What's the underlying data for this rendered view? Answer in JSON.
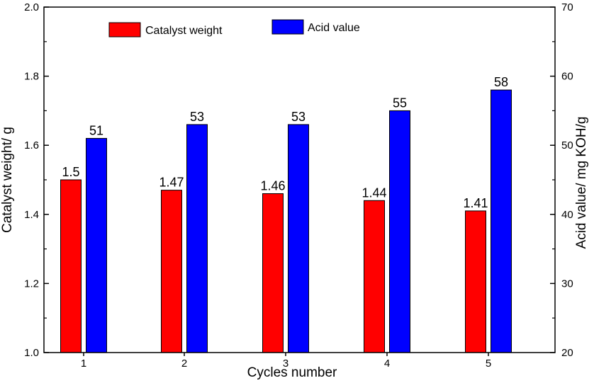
{
  "chart_data": {
    "type": "bar",
    "title": "",
    "xlabel": "Cycles number",
    "ylabel_left": "Catalyst weight/ g",
    "ylabel_right": "Acid value/ mg KOH/g",
    "categories": [
      "1",
      "2",
      "3",
      "4",
      "5"
    ],
    "ylim_left": [
      1.0,
      2.0
    ],
    "yticks_left": [
      "1.0",
      "1.2",
      "1.4",
      "1.6",
      "1.8",
      "2.0"
    ],
    "ylim_right": [
      20,
      70
    ],
    "yticks_right": [
      "20",
      "30",
      "40",
      "50",
      "60",
      "70"
    ],
    "grid": false,
    "legend_position": "top",
    "series": [
      {
        "name": "Catalyst weight",
        "axis": "left",
        "color": "#ff0000",
        "values": [
          1.5,
          1.47,
          1.46,
          1.44,
          1.41
        ],
        "labels": [
          "1.5",
          "1.47",
          "1.46",
          "1.44",
          "1.41"
        ]
      },
      {
        "name": "Acid value",
        "axis": "right",
        "color": "#0000ff",
        "values": [
          51,
          53,
          53,
          55,
          58
        ],
        "labels": [
          "51",
          "53",
          "53",
          "55",
          "58"
        ]
      }
    ]
  }
}
